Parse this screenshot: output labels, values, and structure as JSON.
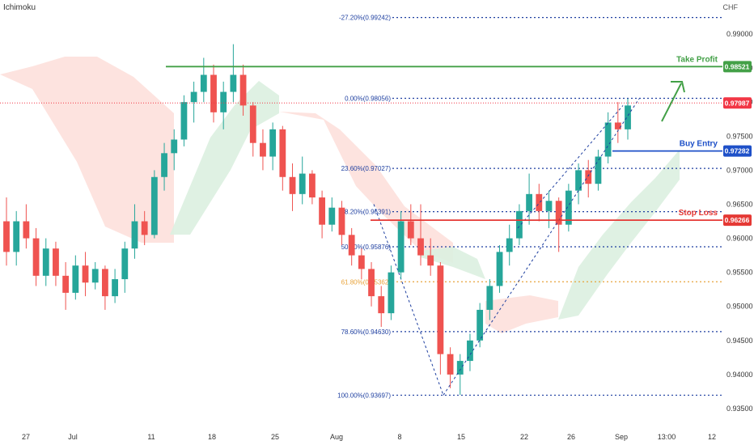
{
  "indicator": "Ichimoku",
  "currency": "CHF",
  "colors": {
    "up": "#26a69a",
    "down": "#ef5350",
    "fib": "#1e3fa0",
    "fib618": "#e8a33a",
    "take_profit": "#43a047",
    "buy_entry": "#1e50c8",
    "stop_loss": "#e53935",
    "current_price": "#f23645",
    "cloud_bull": "#dcefe0",
    "cloud_bear": "#fde0dc"
  },
  "chart_data": {
    "type": "candlestick",
    "title": "",
    "y_axis": {
      "ticks": [
        "0.93500",
        "0.94000",
        "0.94500",
        "0.95000",
        "0.95500",
        "0.96000",
        "0.96500",
        "0.97000",
        "0.97500",
        "0.98000",
        "0.98500",
        "0.99000"
      ],
      "range": [
        0.9325,
        0.9955
      ]
    },
    "x_axis": {
      "labels": [
        "27",
        "Jul",
        "11",
        "18",
        "25",
        "Aug",
        "8",
        "15",
        "22",
        "26",
        "Sep",
        "13:00",
        "12"
      ]
    },
    "fib_levels": [
      {
        "label": "-27.20%(0.99242)",
        "value": 0.99242
      },
      {
        "label": "0.00%(0.98056)",
        "value": 0.98056
      },
      {
        "label": "23.60%(0.97027)",
        "value": 0.97027
      },
      {
        "label": "38.20%(0.96391)",
        "value": 0.96391
      },
      {
        "label": "50.00%(0.95876)",
        "value": 0.95876
      },
      {
        "label": "61.80%(0.95362)",
        "value": 0.95362
      },
      {
        "label": "78.60%(0.94630)",
        "value": 0.9463
      },
      {
        "label": "100.00%(0.93697)",
        "value": 0.93697
      }
    ],
    "levels": [
      {
        "name": "Take Profit",
        "value": 0.98521,
        "price_label": "0.98521"
      },
      {
        "name": "Buy Entry",
        "value": 0.97282,
        "price_label": "0.97282"
      },
      {
        "name": "Stop Loss",
        "value": 0.96266,
        "price_label": "0.96266"
      }
    ],
    "current_price": {
      "value": 0.97987,
      "label": "0.97987"
    },
    "series": [
      {
        "open": 0.9625,
        "high": 0.966,
        "low": 0.956,
        "close": 0.958
      },
      {
        "open": 0.958,
        "high": 0.964,
        "low": 0.956,
        "close": 0.9625
      },
      {
        "open": 0.9625,
        "high": 0.965,
        "low": 0.9585,
        "close": 0.96
      },
      {
        "open": 0.96,
        "high": 0.9615,
        "low": 0.953,
        "close": 0.9545
      },
      {
        "open": 0.9545,
        "high": 0.96,
        "low": 0.953,
        "close": 0.9585
      },
      {
        "open": 0.9585,
        "high": 0.9595,
        "low": 0.953,
        "close": 0.9545
      },
      {
        "open": 0.9545,
        "high": 0.9565,
        "low": 0.9495,
        "close": 0.952
      },
      {
        "open": 0.952,
        "high": 0.9575,
        "low": 0.951,
        "close": 0.956
      },
      {
        "open": 0.956,
        "high": 0.958,
        "low": 0.9515,
        "close": 0.9535
      },
      {
        "open": 0.9535,
        "high": 0.9565,
        "low": 0.9525,
        "close": 0.9555
      },
      {
        "open": 0.9555,
        "high": 0.956,
        "low": 0.9495,
        "close": 0.9515
      },
      {
        "open": 0.9515,
        "high": 0.9555,
        "low": 0.9505,
        "close": 0.954
      },
      {
        "open": 0.954,
        "high": 0.9595,
        "low": 0.952,
        "close": 0.9585
      },
      {
        "open": 0.9585,
        "high": 0.965,
        "low": 0.957,
        "close": 0.9625
      },
      {
        "open": 0.9625,
        "high": 0.964,
        "low": 0.959,
        "close": 0.9605
      },
      {
        "open": 0.9605,
        "high": 0.97,
        "low": 0.96,
        "close": 0.969
      },
      {
        "open": 0.969,
        "high": 0.974,
        "low": 0.967,
        "close": 0.9725
      },
      {
        "open": 0.9725,
        "high": 0.976,
        "low": 0.97,
        "close": 0.9745
      },
      {
        "open": 0.9745,
        "high": 0.981,
        "low": 0.9735,
        "close": 0.98
      },
      {
        "open": 0.98,
        "high": 0.983,
        "low": 0.977,
        "close": 0.9815
      },
      {
        "open": 0.9815,
        "high": 0.9865,
        "low": 0.98,
        "close": 0.984
      },
      {
        "open": 0.984,
        "high": 0.9855,
        "low": 0.977,
        "close": 0.9785
      },
      {
        "open": 0.9785,
        "high": 0.983,
        "low": 0.976,
        "close": 0.9815
      },
      {
        "open": 0.9815,
        "high": 0.9885,
        "low": 0.98,
        "close": 0.984
      },
      {
        "open": 0.984,
        "high": 0.9855,
        "low": 0.978,
        "close": 0.9795
      },
      {
        "open": 0.9795,
        "high": 0.98,
        "low": 0.972,
        "close": 0.974
      },
      {
        "open": 0.974,
        "high": 0.976,
        "low": 0.97,
        "close": 0.972
      },
      {
        "open": 0.972,
        "high": 0.977,
        "low": 0.97,
        "close": 0.976
      },
      {
        "open": 0.976,
        "high": 0.9765,
        "low": 0.967,
        "close": 0.969
      },
      {
        "open": 0.969,
        "high": 0.971,
        "low": 0.964,
        "close": 0.9665
      },
      {
        "open": 0.9665,
        "high": 0.972,
        "low": 0.965,
        "close": 0.9695
      },
      {
        "open": 0.9695,
        "high": 0.97,
        "low": 0.965,
        "close": 0.966
      },
      {
        "open": 0.966,
        "high": 0.967,
        "low": 0.96,
        "close": 0.962
      },
      {
        "open": 0.962,
        "high": 0.966,
        "low": 0.961,
        "close": 0.9645
      },
      {
        "open": 0.9645,
        "high": 0.9655,
        "low": 0.959,
        "close": 0.9605
      },
      {
        "open": 0.9605,
        "high": 0.9615,
        "low": 0.956,
        "close": 0.9575
      },
      {
        "open": 0.9575,
        "high": 0.9585,
        "low": 0.954,
        "close": 0.9555
      },
      {
        "open": 0.9555,
        "high": 0.9565,
        "low": 0.95,
        "close": 0.9515
      },
      {
        "open": 0.9515,
        "high": 0.953,
        "low": 0.947,
        "close": 0.949
      },
      {
        "open": 0.949,
        "high": 0.956,
        "low": 0.948,
        "close": 0.955
      },
      {
        "open": 0.955,
        "high": 0.964,
        "low": 0.954,
        "close": 0.9625
      },
      {
        "open": 0.9625,
        "high": 0.965,
        "low": 0.959,
        "close": 0.96
      },
      {
        "open": 0.96,
        "high": 0.965,
        "low": 0.956,
        "close": 0.9575
      },
      {
        "open": 0.9575,
        "high": 0.96,
        "low": 0.9545,
        "close": 0.956
      },
      {
        "open": 0.956,
        "high": 0.9565,
        "low": 0.94,
        "close": 0.943
      },
      {
        "open": 0.943,
        "high": 0.944,
        "low": 0.938,
        "close": 0.94
      },
      {
        "open": 0.94,
        "high": 0.943,
        "low": 0.937,
        "close": 0.942
      },
      {
        "open": 0.942,
        "high": 0.946,
        "low": 0.9405,
        "close": 0.945
      },
      {
        "open": 0.945,
        "high": 0.9505,
        "low": 0.944,
        "close": 0.9495
      },
      {
        "open": 0.9495,
        "high": 0.954,
        "low": 0.948,
        "close": 0.953
      },
      {
        "open": 0.953,
        "high": 0.959,
        "low": 0.952,
        "close": 0.958
      },
      {
        "open": 0.958,
        "high": 0.962,
        "low": 0.956,
        "close": 0.96
      },
      {
        "open": 0.96,
        "high": 0.965,
        "low": 0.959,
        "close": 0.964
      },
      {
        "open": 0.964,
        "high": 0.9695,
        "low": 0.962,
        "close": 0.9665
      },
      {
        "open": 0.9665,
        "high": 0.968,
        "low": 0.9625,
        "close": 0.964
      },
      {
        "open": 0.964,
        "high": 0.967,
        "low": 0.9615,
        "close": 0.9655
      },
      {
        "open": 0.9655,
        "high": 0.966,
        "low": 0.958,
        "close": 0.962
      },
      {
        "open": 0.962,
        "high": 0.968,
        "low": 0.961,
        "close": 0.967
      },
      {
        "open": 0.967,
        "high": 0.971,
        "low": 0.965,
        "close": 0.97
      },
      {
        "open": 0.97,
        "high": 0.9715,
        "low": 0.966,
        "close": 0.968
      },
      {
        "open": 0.968,
        "high": 0.973,
        "low": 0.967,
        "close": 0.972
      },
      {
        "open": 0.972,
        "high": 0.9785,
        "low": 0.971,
        "close": 0.977
      },
      {
        "open": 0.977,
        "high": 0.98,
        "low": 0.974,
        "close": 0.976
      },
      {
        "open": 0.976,
        "high": 0.9805,
        "low": 0.9745,
        "close": 0.9795
      }
    ],
    "grid": false,
    "legend": "none"
  }
}
